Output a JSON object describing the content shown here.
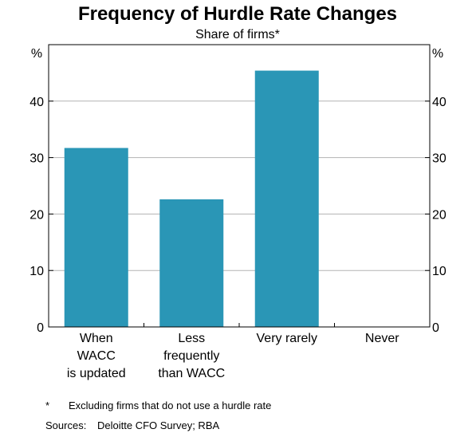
{
  "chart_data": {
    "type": "bar",
    "title": "Frequency of Hurdle Rate Changes",
    "subtitle": "Share of firms*",
    "ylabel_left": "%",
    "ylabel_right": "%",
    "ylim": [
      0,
      50
    ],
    "yticks": [
      0,
      10,
      20,
      30,
      40
    ],
    "categories": [
      [
        "When",
        "WACC",
        "is updated"
      ],
      [
        "Less",
        "frequently",
        "than WACC"
      ],
      [
        "Very rarely"
      ],
      [
        "Never"
      ]
    ],
    "values": [
      31.7,
      22.6,
      45.4,
      0
    ],
    "bar_color": "#2a96b6",
    "grid": true
  },
  "notes": {
    "footnote_marker": "*",
    "footnote_text": "Excluding firms that do not use a hurdle rate",
    "sources_label": "Sources:",
    "sources_text": "Deloitte CFO Survey; RBA"
  }
}
